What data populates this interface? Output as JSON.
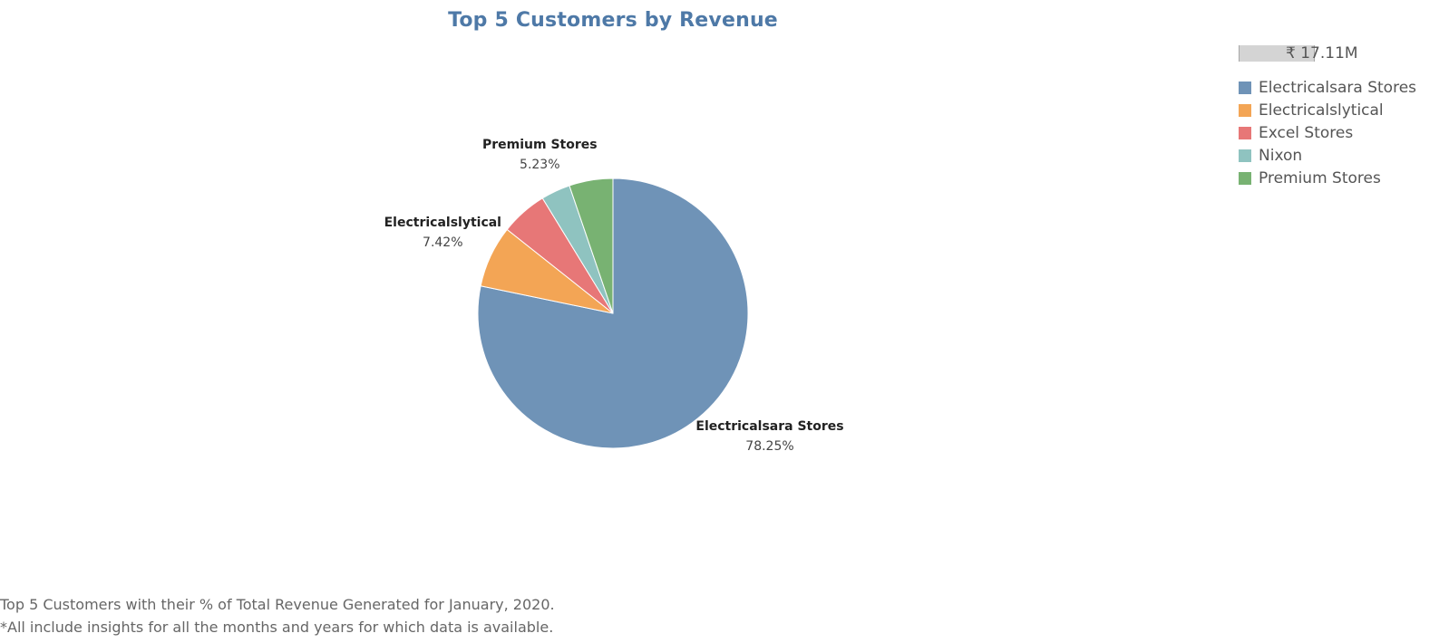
{
  "chart_data": {
    "type": "pie",
    "title": "Top 5 Customers by Revenue",
    "size_legend_label": "₹ 17.11M",
    "legend_placement": "top-right",
    "categories": [
      "Electricalsara Stores",
      "Electricalslytical",
      "Excel Stores",
      "Nixon",
      "Premium Stores"
    ],
    "values": [
      78.25,
      7.42,
      5.6,
      3.5,
      5.23
    ],
    "value_labels": [
      "78.25%",
      "7.42%",
      "",
      "",
      "5.23%"
    ],
    "colors": [
      "#6f93b7",
      "#f3a555",
      "#e77777",
      "#8fc3c0",
      "#78b272"
    ]
  },
  "footnote": {
    "line1": "Top 5 Customers with their % of Total Revenue Generated for January, 2020.",
    "line2": "*All include insights for all the months and years for which data is available."
  }
}
